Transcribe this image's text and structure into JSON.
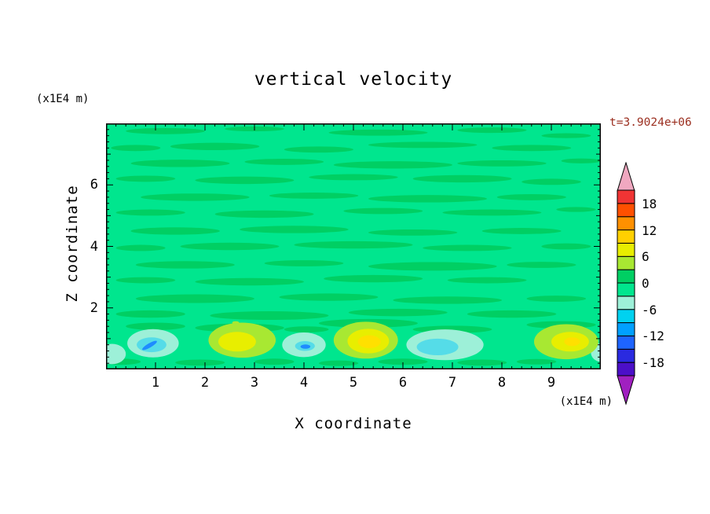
{
  "title": "vertical velocity",
  "colors": {
    "background": "#ffffff",
    "axis": "#000000",
    "time_label": "#9b2f20",
    "field_background_green": "#00e68e",
    "field_stripe_green": "#00cf63"
  },
  "annotations": {
    "time_label": "t=3.9024e+06"
  },
  "axes": {
    "x_label": "X coordinate",
    "x_unit": "(x1E4 m)",
    "x_ticks": [
      1,
      2,
      3,
      4,
      5,
      6,
      7,
      8,
      9
    ],
    "x_range": [
      0,
      10
    ],
    "y_label": "Z coordinate",
    "y_unit": "(x1E4 m)",
    "y_ticks": [
      2,
      4,
      6
    ],
    "y_range": [
      0,
      8
    ],
    "minor_tick_step": 0.2
  },
  "colorbar": {
    "tick_values": [
      18,
      12,
      6,
      0,
      -6,
      -12,
      -18
    ],
    "range": [
      -21,
      21
    ],
    "cap_top": "#f0a8c0",
    "cap_bottom": "#a020c0",
    "segments": [
      [
        -21,
        -18,
        "#4b0fc8"
      ],
      [
        -18,
        -15,
        "#2a2ae0"
      ],
      [
        -15,
        -12,
        "#1e64ff"
      ],
      [
        -12,
        -9,
        "#00a0ff"
      ],
      [
        -9,
        -6,
        "#00d2f0"
      ],
      [
        -6,
        -3,
        "#9df0d8"
      ],
      [
        -3,
        0,
        "#00e68e"
      ],
      [
        0,
        3,
        "#00cf63"
      ],
      [
        3,
        6,
        "#a8e832"
      ],
      [
        6,
        9,
        "#e8ee00"
      ],
      [
        9,
        12,
        "#ffd000"
      ],
      [
        12,
        15,
        "#ff9000"
      ],
      [
        15,
        18,
        "#ff5000"
      ],
      [
        18,
        21,
        "#f03434"
      ]
    ]
  },
  "chart_data": {
    "type": "contour",
    "title": "vertical velocity",
    "xlabel": "X coordinate (x1E4 m)",
    "ylabel": "Z coordinate (x1E4 m)",
    "x_range": [
      0,
      10
    ],
    "z_range": [
      0,
      8
    ],
    "time": "t=3.9024e+06",
    "contour_interval": 3,
    "levels_range": [
      -21,
      21
    ],
    "description": "Vertical velocity field: near-zero (green, -3..3 band) over most of the domain with thin striated weak anomalies; a shallow convective layer below z~1.5 contains alternating downdraft cells (pale cyan/cyan/blue, roughly -6 to -12) and updraft cells (yellow-green to bright yellow, roughly +6 to +12).",
    "cells": [
      {
        "x": 0.95,
        "type": "downdraft",
        "peak_value_band": "-12 to -9"
      },
      {
        "x": 2.75,
        "type": "updraft",
        "peak_value_band": "6 to 9"
      },
      {
        "x": 4.0,
        "type": "downdraft",
        "peak_value_band": "-12 to -9"
      },
      {
        "x": 5.3,
        "type": "updraft",
        "peak_value_band": "9 to 12"
      },
      {
        "x": 6.85,
        "type": "downdraft",
        "peak_value_band": "-9 to -6"
      },
      {
        "x": 9.35,
        "type": "updraft",
        "peak_value_band": "9 to 12"
      }
    ],
    "render": {
      "background_color": "#00e68e",
      "layers": [
        {
          "name": "weak-positive-stripes",
          "color": "#00cf63",
          "shapes": [
            [
              1.2,
              7.75,
              0.8,
              0.1
            ],
            [
              3.0,
              7.82,
              0.6,
              0.08
            ],
            [
              5.5,
              7.7,
              1.0,
              0.1
            ],
            [
              7.8,
              7.78,
              0.7,
              0.09
            ],
            [
              9.3,
              7.6,
              0.5,
              0.08
            ],
            [
              0.6,
              7.2,
              0.5,
              0.1
            ],
            [
              2.2,
              7.25,
              0.9,
              0.12
            ],
            [
              4.3,
              7.15,
              0.7,
              0.1
            ],
            [
              6.4,
              7.3,
              1.1,
              0.1
            ],
            [
              8.6,
              7.2,
              0.8,
              0.1
            ],
            [
              1.5,
              6.7,
              1.0,
              0.12
            ],
            [
              3.6,
              6.75,
              0.8,
              0.1
            ],
            [
              5.8,
              6.65,
              1.2,
              0.12
            ],
            [
              8.0,
              6.7,
              0.9,
              0.1
            ],
            [
              9.6,
              6.78,
              0.4,
              0.08
            ],
            [
              0.8,
              6.2,
              0.6,
              0.1
            ],
            [
              2.8,
              6.15,
              1.0,
              0.12
            ],
            [
              5.0,
              6.25,
              0.9,
              0.1
            ],
            [
              7.2,
              6.2,
              1.0,
              0.12
            ],
            [
              9.0,
              6.1,
              0.6,
              0.1
            ],
            [
              1.8,
              5.6,
              1.1,
              0.12
            ],
            [
              4.2,
              5.65,
              0.9,
              0.1
            ],
            [
              6.5,
              5.55,
              1.2,
              0.12
            ],
            [
              8.6,
              5.6,
              0.7,
              0.1
            ],
            [
              0.9,
              5.1,
              0.7,
              0.1
            ],
            [
              3.2,
              5.05,
              1.0,
              0.12
            ],
            [
              5.6,
              5.15,
              0.8,
              0.1
            ],
            [
              7.8,
              5.1,
              1.0,
              0.1
            ],
            [
              9.5,
              5.2,
              0.4,
              0.08
            ],
            [
              1.4,
              4.5,
              0.9,
              0.12
            ],
            [
              3.8,
              4.55,
              1.1,
              0.12
            ],
            [
              6.2,
              4.45,
              0.9,
              0.1
            ],
            [
              8.4,
              4.5,
              0.8,
              0.1
            ],
            [
              0.7,
              3.95,
              0.5,
              0.1
            ],
            [
              2.5,
              4.0,
              1.0,
              0.12
            ],
            [
              5.0,
              4.05,
              1.2,
              0.12
            ],
            [
              7.3,
              3.95,
              0.9,
              0.1
            ],
            [
              9.3,
              4.0,
              0.5,
              0.1
            ],
            [
              1.6,
              3.4,
              1.0,
              0.12
            ],
            [
              4.0,
              3.45,
              0.8,
              0.1
            ],
            [
              6.6,
              3.35,
              1.3,
              0.14
            ],
            [
              8.8,
              3.4,
              0.7,
              0.1
            ],
            [
              0.8,
              2.9,
              0.6,
              0.1
            ],
            [
              2.9,
              2.85,
              1.1,
              0.12
            ],
            [
              5.4,
              2.95,
              1.0,
              0.12
            ],
            [
              7.7,
              2.9,
              0.8,
              0.1
            ],
            [
              1.8,
              2.3,
              1.2,
              0.14
            ],
            [
              4.5,
              2.35,
              1.0,
              0.12
            ],
            [
              6.9,
              2.25,
              1.1,
              0.12
            ],
            [
              9.1,
              2.3,
              0.6,
              0.1
            ],
            [
              0.9,
              1.8,
              0.7,
              0.12
            ],
            [
              3.3,
              1.75,
              1.2,
              0.14
            ],
            [
              5.9,
              1.85,
              1.0,
              0.12
            ],
            [
              8.2,
              1.8,
              0.9,
              0.12
            ],
            [
              2.7,
              1.35,
              0.9,
              0.14
            ],
            [
              5.3,
              1.5,
              1.0,
              0.14
            ],
            [
              7.0,
              1.3,
              0.8,
              0.12
            ],
            [
              9.2,
              1.45,
              0.7,
              0.12
            ],
            [
              1.0,
              1.4,
              0.6,
              0.12
            ],
            [
              4.05,
              1.3,
              0.45,
              0.1
            ],
            [
              0.3,
              0.25,
              0.4,
              0.1
            ],
            [
              1.9,
              0.22,
              0.5,
              0.1
            ],
            [
              3.4,
              0.25,
              0.4,
              0.1
            ],
            [
              4.7,
              0.2,
              0.4,
              0.09
            ],
            [
              6.0,
              0.25,
              0.5,
              0.1
            ],
            [
              7.6,
              0.22,
              0.5,
              0.1
            ],
            [
              8.7,
              0.25,
              0.4,
              0.09
            ]
          ]
        },
        {
          "name": "downdraft-pale-cyan",
          "color": "#9df0d8",
          "shapes": [
            [
              0.95,
              0.85,
              0.52,
              0.46
            ],
            [
              0.12,
              0.5,
              0.28,
              0.33
            ],
            [
              4.0,
              0.8,
              0.44,
              0.4
            ],
            [
              6.85,
              0.8,
              0.78,
              0.5
            ],
            [
              10.0,
              0.55,
              0.2,
              0.3
            ]
          ]
        },
        {
          "name": "downdraft-cyan",
          "color": "#55dce8",
          "shapes": [
            [
              0.92,
              0.8,
              0.3,
              0.24
            ],
            [
              6.7,
              0.73,
              0.42,
              0.27
            ],
            [
              4.02,
              0.76,
              0.2,
              0.16
            ]
          ]
        },
        {
          "name": "downdraft-blue-core",
          "color": "#1e8cff",
          "shapes": [
            [
              0.88,
              0.78,
              0.17,
              0.07,
              -30
            ],
            [
              4.03,
              0.74,
              0.1,
              0.07,
              0
            ]
          ]
        },
        {
          "name": "updraft-yellow-green",
          "color": "#a8e832",
          "shapes": [
            [
              2.75,
              0.95,
              0.68,
              0.57
            ],
            [
              5.25,
              0.95,
              0.65,
              0.6
            ],
            [
              9.3,
              0.9,
              0.65,
              0.57
            ],
            [
              2.62,
              1.52,
              0.07,
              0.05
            ]
          ]
        },
        {
          "name": "updraft-yellow",
          "color": "#e8ee00",
          "shapes": [
            [
              2.65,
              0.9,
              0.38,
              0.32
            ],
            [
              5.3,
              0.92,
              0.42,
              0.4
            ],
            [
              9.38,
              0.9,
              0.38,
              0.32
            ]
          ]
        },
        {
          "name": "updraft-bright-yellow-core",
          "color": "#ffe000",
          "shapes": [
            [
              5.32,
              0.9,
              0.23,
              0.21
            ],
            [
              9.42,
              0.9,
              0.16,
              0.14
            ]
          ]
        }
      ]
    }
  }
}
